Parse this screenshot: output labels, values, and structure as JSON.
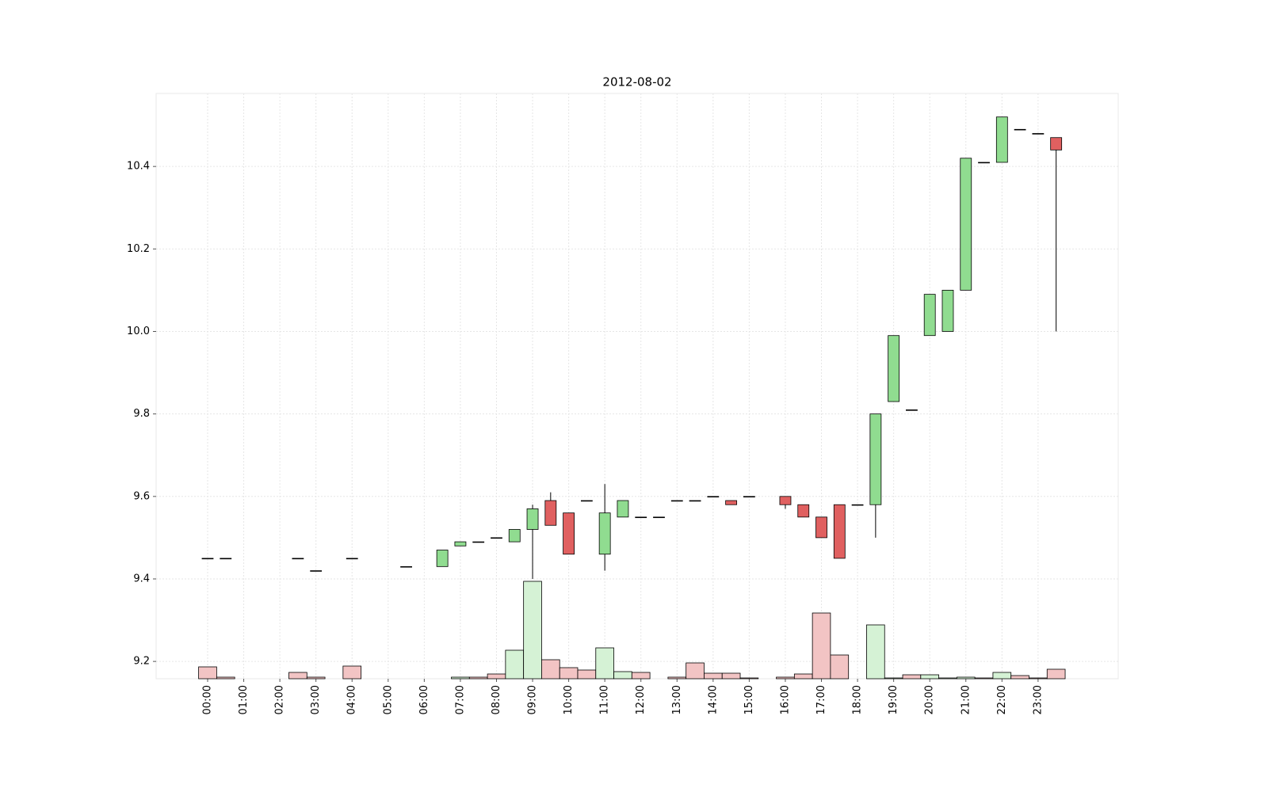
{
  "chart_data": {
    "type": "candlestick",
    "title": "2012-08-02",
    "categories": [
      "00:00",
      null,
      "01:00",
      null,
      "02:00",
      null,
      "03:00",
      null,
      "04:00",
      null,
      "05:00",
      null,
      "06:00",
      null,
      "07:00",
      null,
      "08:00",
      null,
      "09:00",
      null,
      "10:00",
      null,
      "11:00",
      null,
      "12:00",
      null,
      "13:00",
      null,
      "14:00",
      null,
      "15:00",
      null,
      "16:00",
      null,
      "17:00",
      null,
      "18:00",
      null,
      "19:00",
      null,
      "20:00",
      null,
      "21:00",
      null,
      "22:00",
      null,
      "23:00",
      null
    ],
    "open": [
      9.45,
      9.45,
      null,
      null,
      null,
      9.45,
      9.42,
      null,
      9.45,
      null,
      null,
      9.43,
      null,
      9.43,
      9.48,
      9.49,
      9.5,
      9.49,
      9.52,
      9.59,
      9.56,
      9.59,
      9.46,
      9.55,
      9.55,
      9.55,
      9.59,
      9.59,
      9.6,
      9.59,
      9.6,
      null,
      9.6,
      9.58,
      9.55,
      9.58,
      9.58,
      9.58,
      9.83,
      9.81,
      9.99,
      10.0,
      10.1,
      10.41,
      10.41,
      10.49,
      10.48,
      10.47
    ],
    "high": [
      9.45,
      9.45,
      null,
      null,
      null,
      9.45,
      9.42,
      null,
      9.45,
      null,
      null,
      9.43,
      null,
      9.47,
      9.49,
      9.49,
      9.5,
      9.52,
      9.58,
      9.61,
      9.56,
      9.59,
      9.63,
      9.59,
      9.55,
      9.55,
      9.59,
      9.59,
      9.6,
      9.59,
      9.6,
      null,
      9.6,
      9.58,
      9.55,
      9.58,
      9.58,
      9.8,
      9.99,
      9.81,
      10.09,
      10.1,
      10.42,
      10.41,
      10.52,
      10.49,
      10.48,
      10.47
    ],
    "low": [
      9.45,
      9.45,
      null,
      null,
      null,
      9.45,
      9.42,
      null,
      9.45,
      null,
      null,
      9.43,
      null,
      9.43,
      9.48,
      9.49,
      9.5,
      9.49,
      9.4,
      9.53,
      9.46,
      9.59,
      9.42,
      9.55,
      9.55,
      9.55,
      9.59,
      9.59,
      9.6,
      9.58,
      9.6,
      null,
      9.57,
      9.55,
      9.5,
      9.45,
      9.58,
      9.5,
      9.83,
      9.81,
      9.99,
      10.0,
      10.1,
      10.41,
      10.41,
      10.49,
      10.48,
      10.0
    ],
    "close": [
      9.45,
      9.45,
      null,
      null,
      null,
      9.45,
      9.42,
      null,
      9.45,
      null,
      null,
      9.43,
      null,
      9.47,
      9.49,
      9.49,
      9.5,
      9.52,
      9.57,
      9.53,
      9.46,
      9.59,
      9.56,
      9.59,
      9.55,
      9.55,
      9.59,
      9.59,
      9.6,
      9.58,
      9.6,
      null,
      9.58,
      9.55,
      9.5,
      9.45,
      9.58,
      9.8,
      9.99,
      9.81,
      10.09,
      10.1,
      10.42,
      10.41,
      10.52,
      10.49,
      10.48,
      10.44
    ],
    "volume": [
      15,
      2,
      null,
      null,
      null,
      8,
      2,
      null,
      16,
      null,
      null,
      0,
      null,
      0,
      2,
      2,
      6,
      36,
      123,
      24,
      14,
      11,
      39,
      9,
      8,
      0,
      2,
      20,
      7,
      7,
      1,
      null,
      2,
      6,
      83,
      30,
      0,
      68,
      1,
      5,
      5,
      1,
      2,
      1,
      8,
      4,
      1,
      12
    ],
    "up_color": "#90dc90",
    "down_color": "#e06060",
    "up_volume_color": "#d5f2d5",
    "down_volume_color": "#f2c4c4",
    "ylim": [
      9.158,
      10.577
    ],
    "yticks": [
      9.2,
      9.4,
      9.6,
      9.8,
      {
        "value": 10,
        "label": "10.0"
      },
      10.2,
      10.4
    ],
    "y2lim": [
      0,
      739
    ],
    "grid": true
  }
}
